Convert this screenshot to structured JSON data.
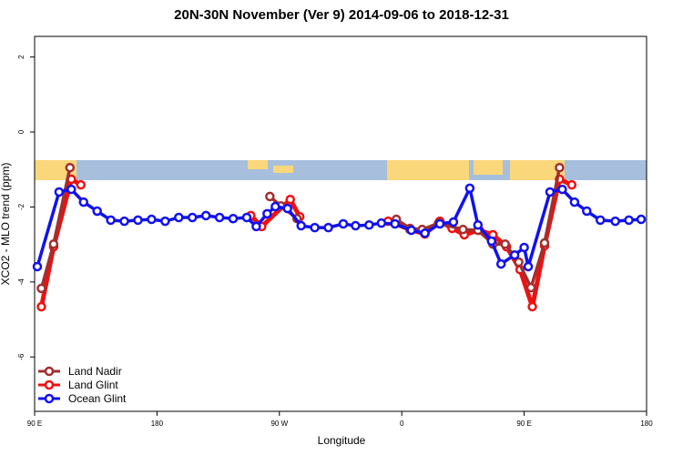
{
  "chart_data": {
    "type": "line",
    "title": "20N-30N November (Ver 9)   2014-09-06 to 2018-12-31",
    "x_label": "Longitude",
    "y_label": "XCO2 - MLO trend (ppm)",
    "xlim": [
      90,
      540
    ],
    "ylim": [
      -7.45,
      2.55
    ],
    "xticks": [
      {
        "value": 90,
        "label": "90 E"
      },
      {
        "value": 180,
        "label": "180"
      },
      {
        "value": 270,
        "label": "90 W"
      },
      {
        "value": 360,
        "label": "0"
      },
      {
        "value": 450,
        "label": "90 E"
      },
      {
        "value": 540,
        "label": "180"
      }
    ],
    "yticks": [
      2,
      0,
      -2,
      -4,
      -6
    ],
    "legend": "bottom-left",
    "series": [
      {
        "name": "Land Nadir",
        "color": "#a0302f",
        "x": [
          95,
          104,
          116,
          null,
          263,
          271,
          283,
          null,
          356,
          366,
          375,
          387,
          405,
          416,
          427,
          436,
          446,
          455,
          465,
          476
        ],
        "values": [
          -4.17,
          -2.99,
          -0.95,
          null,
          -1.72,
          -1.97,
          -2.31,
          null,
          -2.33,
          -2.57,
          -2.6,
          -2.43,
          -2.6,
          -2.62,
          -2.99,
          -2.99,
          -3.47,
          -4.15,
          -2.96,
          -0.95
        ]
      },
      {
        "name": "Land Glint",
        "color": "#ee1111",
        "x": [
          95,
          104,
          117,
          124,
          null,
          249,
          257,
          278,
          285,
          null,
          350,
          366,
          377,
          388,
          397,
          406,
          417,
          427,
          437,
          447,
          456,
          465,
          476,
          485
        ],
        "values": [
          -4.66,
          -3.06,
          -1.26,
          -1.41,
          null,
          -2.23,
          -2.52,
          -1.8,
          -2.26,
          null,
          -2.38,
          -2.6,
          -2.72,
          -2.38,
          -2.57,
          -2.74,
          -2.62,
          -2.74,
          -3.06,
          -3.67,
          -4.66,
          -3.03,
          -1.26,
          -1.41
        ]
      },
      {
        "name": "Ocean Glint",
        "color": "#1111ee",
        "x": [
          92,
          108,
          117,
          126,
          136,
          146,
          156,
          166,
          176,
          186,
          196,
          206,
          216,
          226,
          236,
          246,
          253,
          261,
          267,
          276,
          286,
          296,
          306,
          317,
          326,
          336,
          345,
          355,
          367,
          377,
          388,
          398,
          410,
          416,
          426,
          433,
          443,
          450,
          453,
          469,
          478,
          487,
          496,
          506,
          517,
          527,
          536
        ],
        "values": [
          -3.59,
          -1.6,
          -1.53,
          -1.87,
          -2.11,
          -2.35,
          -2.38,
          -2.35,
          -2.33,
          -2.38,
          -2.28,
          -2.28,
          -2.23,
          -2.28,
          -2.31,
          -2.28,
          -2.52,
          -2.18,
          -1.99,
          -2.04,
          -2.5,
          -2.55,
          -2.55,
          -2.45,
          -2.5,
          -2.48,
          -2.43,
          -2.45,
          -2.62,
          -2.7,
          -2.45,
          -2.4,
          -1.5,
          -2.48,
          -2.91,
          -3.52,
          -3.28,
          -3.08,
          -3.59,
          -1.6,
          -1.53,
          -1.87,
          -2.11,
          -2.35,
          -2.38,
          -2.35,
          -2.33
        ]
      }
    ]
  }
}
